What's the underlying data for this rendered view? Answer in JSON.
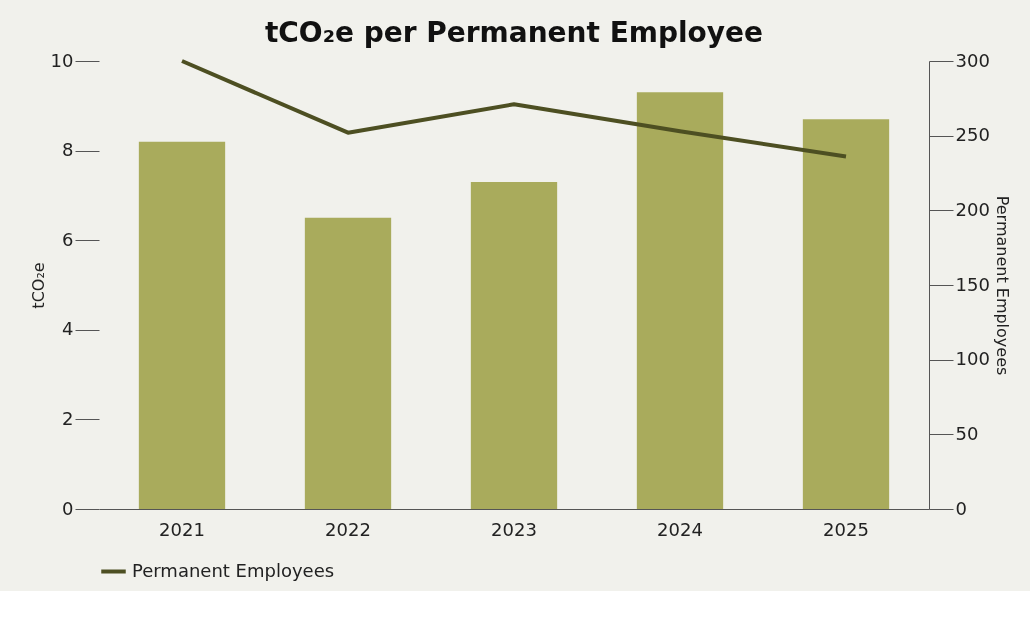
{
  "chart_data": {
    "type": "bar",
    "title": "tCO₂e per Permanent Employee",
    "ylabel": "tCO₂e",
    "y2label": "Permanent Employees",
    "categories": [
      "2021",
      "2022",
      "2023",
      "2024",
      "2025"
    ],
    "series": [
      {
        "color": "#a9ab5c",
        "values": [
          8.2,
          6.5,
          7.3,
          9.3,
          8.7
        ]
      },
      {
        "type": "line",
        "name": "Permanent Employees",
        "color": "#4d4f22",
        "axis": "y2",
        "values": [
          300,
          252,
          271,
          253,
          236
        ]
      }
    ],
    "ylim": [
      0,
      10
    ],
    "yticks": [
      0,
      2,
      4,
      6,
      8,
      10
    ],
    "y2lim": [
      0,
      300
    ],
    "y2ticks": [
      0,
      50,
      100,
      150,
      200,
      250,
      300
    ],
    "grid": false,
    "legend": "bottom",
    "marker": "none",
    "line_style": "solid"
  }
}
